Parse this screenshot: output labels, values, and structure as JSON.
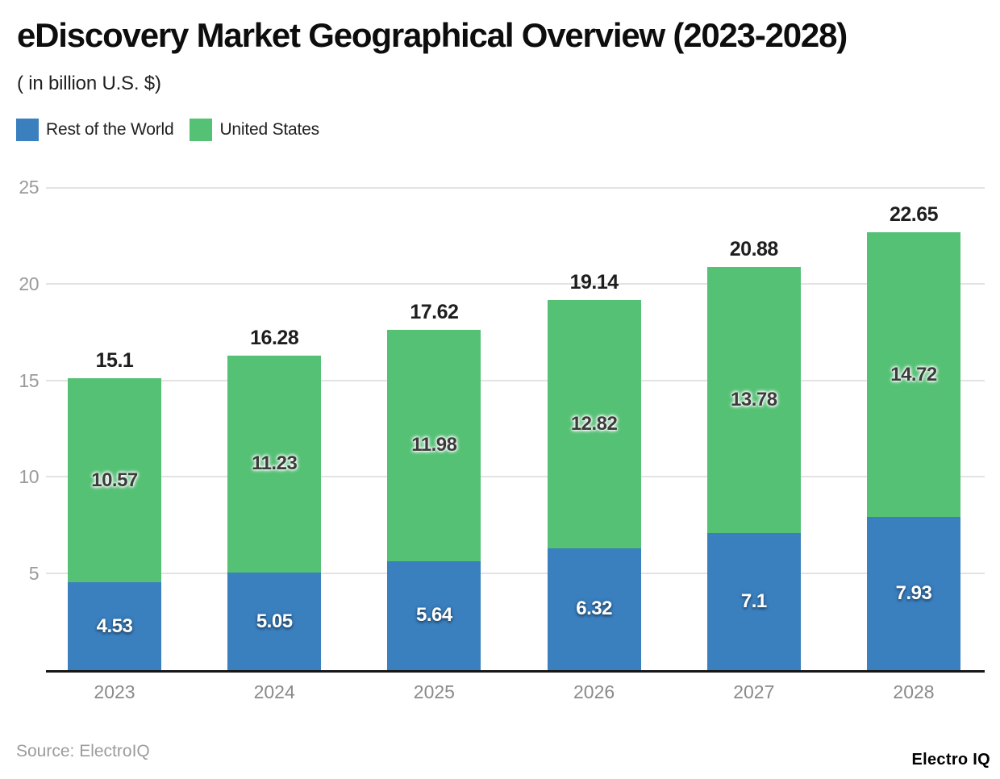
{
  "header": {
    "title": "eDiscovery Market Geographical Overview (2023-2028)",
    "subtitle": "( in billion U.S. $)"
  },
  "legend": {
    "items": [
      {
        "label": "Rest of the World",
        "color": "#3a7fbe"
      },
      {
        "label": "United States",
        "color": "#55c175"
      }
    ]
  },
  "footer": {
    "source": "Source: ElectroIQ",
    "brand": "Electro IQ"
  },
  "chart_data": {
    "type": "bar",
    "stacked": true,
    "title": "eDiscovery Market Geographical Overview (2023-2028)",
    "subtitle": "( in billion U.S. $)",
    "categories": [
      "2023",
      "2024",
      "2025",
      "2026",
      "2027",
      "2028"
    ],
    "series": [
      {
        "name": "Rest of the World",
        "color": "#3a7fbe",
        "values": [
          4.53,
          5.05,
          5.64,
          6.32,
          7.1,
          7.93
        ]
      },
      {
        "name": "United States",
        "color": "#55c175",
        "values": [
          10.57,
          11.23,
          11.98,
          12.82,
          13.78,
          14.72
        ]
      }
    ],
    "totals": [
      15.1,
      16.28,
      17.62,
      19.14,
      20.88,
      22.65
    ],
    "xlabel": "",
    "ylabel": "",
    "ylim": [
      0,
      25
    ],
    "yticks": [
      5,
      10,
      15,
      20,
      25
    ],
    "grid": true,
    "grid_color": "#e3e3e3",
    "legend_position": "top-left",
    "total_label_color": "#1e1e1e",
    "axis_label_color": "#9b9b9b"
  }
}
